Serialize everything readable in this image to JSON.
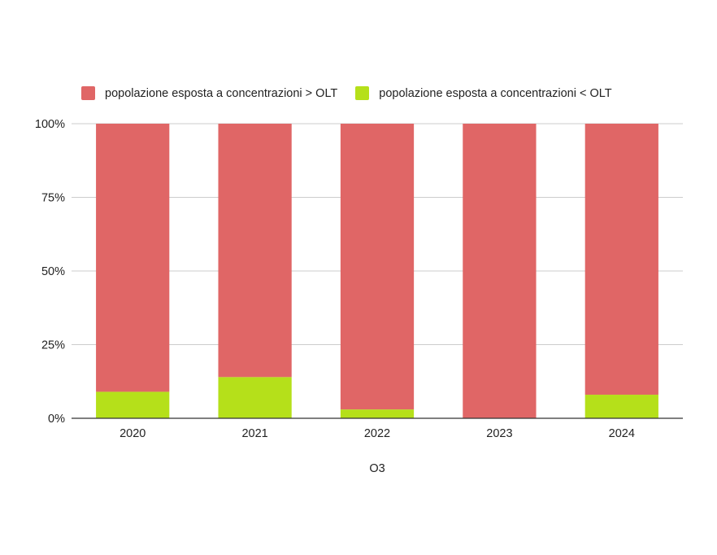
{
  "chart_data": {
    "type": "bar",
    "stacked": true,
    "percent_scale": true,
    "categories": [
      "2020",
      "2021",
      "2022",
      "2023",
      "2024"
    ],
    "series": [
      {
        "name": "popolazione esposta a concentrazioni < OLT",
        "color": "#b5e01a",
        "values": [
          9,
          14,
          3,
          0,
          8
        ]
      },
      {
        "name": "popolazione esposta a concentrazioni > OLT",
        "color": "#e06666",
        "values": [
          91,
          86,
          97,
          100,
          92
        ]
      }
    ],
    "title": "",
    "xlabel": "O3",
    "ylabel": "",
    "ylim": [
      0,
      100
    ],
    "yticks": [
      "0%",
      "25%",
      "50%",
      "75%",
      "100%"
    ],
    "grid": true,
    "legend_position": "top-left"
  }
}
